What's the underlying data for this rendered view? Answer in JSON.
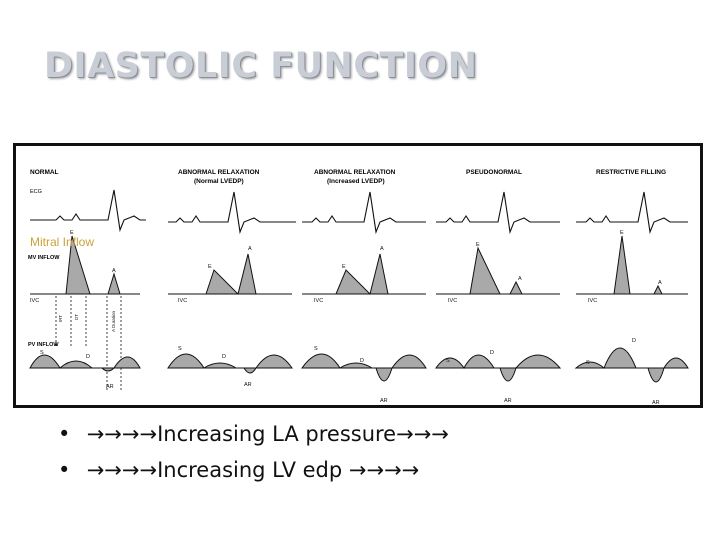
{
  "slide": {
    "title": "DIASTOLIC FUNCTION"
  },
  "figure": {
    "row_labels": {
      "ecg": "ECG",
      "mv": "MV INFLOW",
      "pv": "PV INFLOW"
    },
    "mitral_overlay": "Mitral Inflow",
    "columns": [
      {
        "title": "NORMAL",
        "subtitle": ""
      },
      {
        "title": "ABNORMAL RELAXATION",
        "subtitle": "(Normal LVEDP)"
      },
      {
        "title": "ABNORMAL RELAXATION",
        "subtitle": "(Increased LVEDP)"
      },
      {
        "title": "PSEUDONORMAL",
        "subtitle": ""
      },
      {
        "title": "RESTRICTIVE FILLING",
        "subtitle": ""
      }
    ],
    "wave_labels": {
      "e": "E",
      "a": "A",
      "ivc": "IVC",
      "s": "S",
      "d": "D",
      "ar": "AR"
    },
    "interval_labels": {
      "irt": "IRT",
      "dt": "DT",
      "a_duration": "A Duration"
    }
  },
  "bullets": [
    {
      "arrows_before": "→→→→",
      "text": "Increasing LA pressure",
      "arrows_after": "→→→"
    },
    {
      "arrows_before": "→→→→",
      "text": "Increasing LV edp ",
      "arrows_after": "→→→→"
    }
  ]
}
